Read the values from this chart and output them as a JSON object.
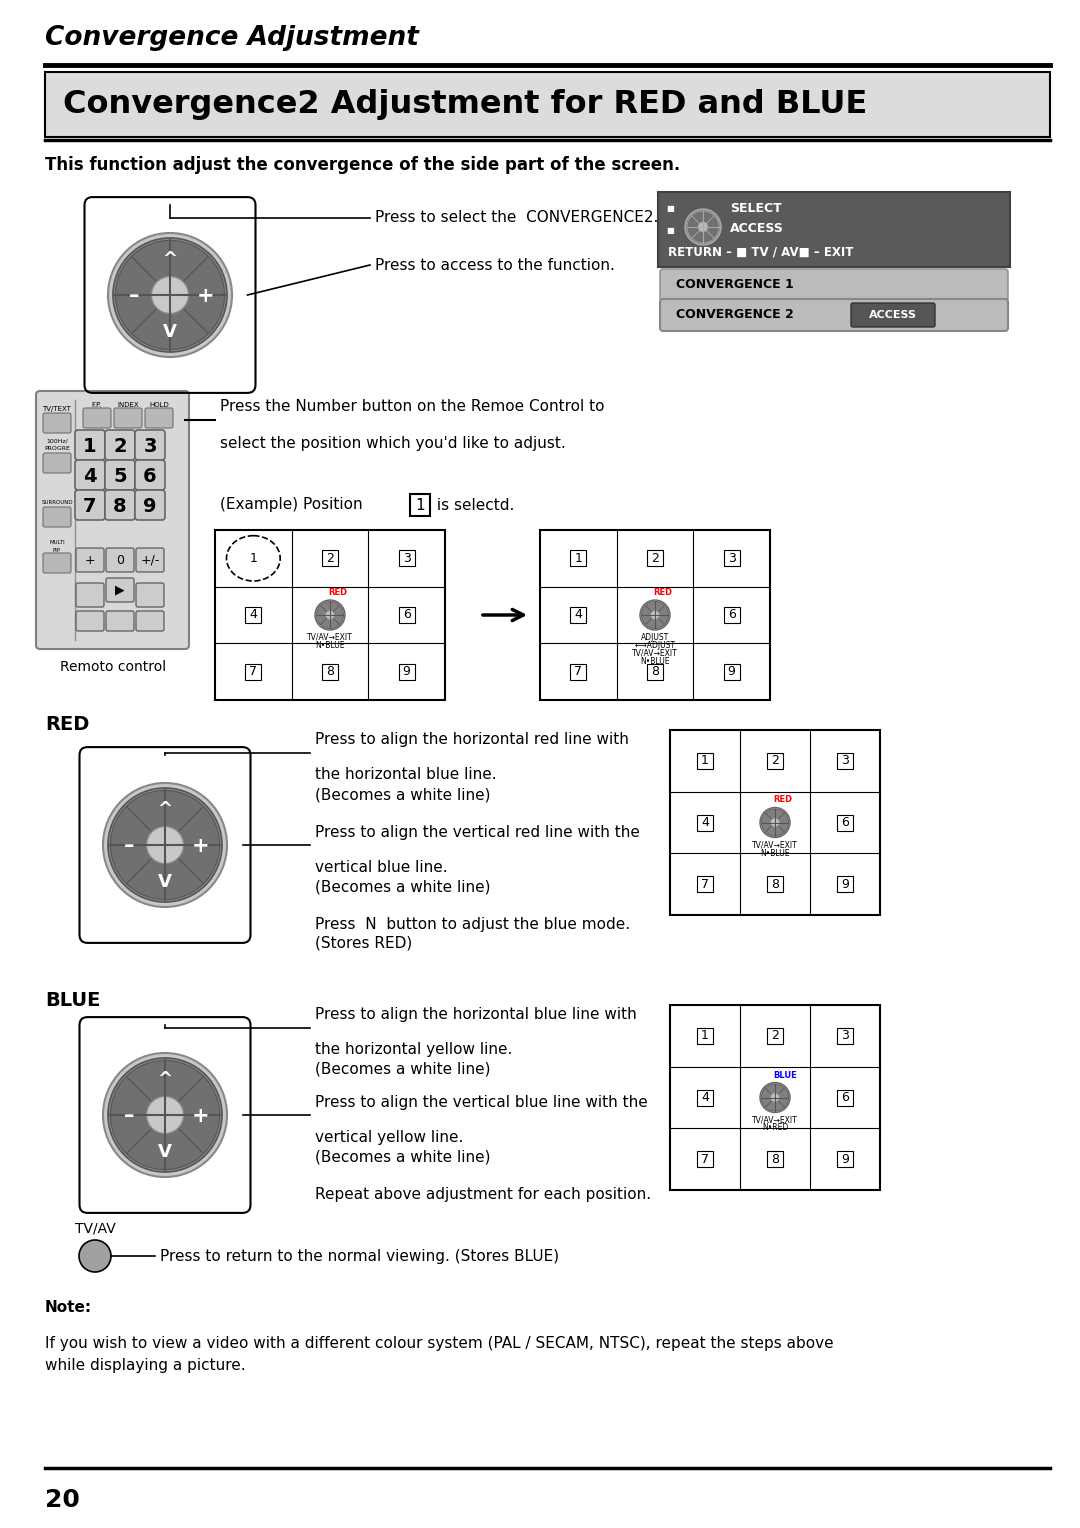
{
  "page_title": "Convergence Adjustment",
  "section_title": "Convergence2 Adjustment for RED and BLUE",
  "body_intro": "This function adjust the convergence of the side part of the screen.",
  "press_select_text": "Press to select the  CONVERGENCE2.",
  "press_access_text": "Press to access to the function.",
  "number_button_text1": "Press the Number button on the Remoe Control to",
  "number_button_text2": "select the position which you'd like to adjust.",
  "example_text": "(Example) Position",
  "example_pos": "1",
  "example_suffix": " is selectd.",
  "red_label": "RED",
  "blue_label": "BLUE",
  "red_press1_line1": "Press to align the horizontal red line with",
  "red_press1_line2": "the horizontal blue line.",
  "red_press1_line3": "(Becomes a white line)",
  "red_press2_line1": "Press to align the vertical red line with the",
  "red_press2_line2": "vertical blue line.",
  "red_press2_line3": "(Becomes a white line)",
  "red_press3_line1": "Press  N  button to adjust the blue mode.",
  "red_press3_line2": "(Stores RED)",
  "blue_press1_line1": "Press to align the horizontal blue line with",
  "blue_press1_line2": "the horizontal yellow line.",
  "blue_press1_line3": "(Becomes a white line)",
  "blue_press2_line1": "Press to align the vertical blue line with the",
  "blue_press2_line2": "vertical yellow line.",
  "blue_press2_line3": "(Becomes a white line)",
  "blue_repeat": "Repeat above adjustment for each position.",
  "tvav_label": "TV/AV",
  "tvav_text": "Press to return to the normal viewing. (Stores BLUE)",
  "note_label": "Note:",
  "note_text1": "If you wish to view a video with a different colour system (PAL / SECAM, NTSC), repeat the steps above",
  "note_text2": "while displaying a picture.",
  "page_number": "20",
  "bg_color": "#FFFFFF",
  "text_color": "#000000"
}
